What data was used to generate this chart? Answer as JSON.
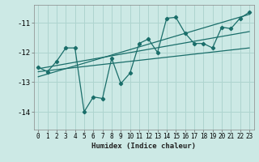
{
  "title": "",
  "xlabel": "Humidex (Indice chaleur)",
  "ylabel": "",
  "background_color": "#cce9e5",
  "grid_color": "#aed4cf",
  "line_color": "#1a6e6a",
  "xlim": [
    -0.5,
    23.5
  ],
  "ylim": [
    -14.6,
    -10.4
  ],
  "yticks": [
    -14,
    -13,
    -12,
    -11
  ],
  "xticks": [
    0,
    1,
    2,
    3,
    4,
    5,
    6,
    7,
    8,
    9,
    10,
    11,
    12,
    13,
    14,
    15,
    16,
    17,
    18,
    19,
    20,
    21,
    22,
    23
  ],
  "scatter_x": [
    0,
    1,
    2,
    3,
    4,
    5,
    6,
    7,
    8,
    9,
    10,
    11,
    12,
    13,
    14,
    15,
    16,
    17,
    18,
    19,
    20,
    21,
    22,
    23
  ],
  "scatter_y": [
    -12.5,
    -12.65,
    -12.3,
    -11.85,
    -11.85,
    -14.0,
    -13.5,
    -13.55,
    -12.2,
    -13.05,
    -12.7,
    -11.7,
    -11.55,
    -12.0,
    -10.85,
    -10.82,
    -11.35,
    -11.7,
    -11.7,
    -11.85,
    -11.15,
    -11.2,
    -10.85,
    -10.65
  ],
  "line1_x": [
    0,
    23
  ],
  "line1_y": [
    -12.65,
    -11.85
  ],
  "line2_x": [
    0,
    23
  ],
  "line2_y": [
    -12.55,
    -11.3
  ],
  "line3_x": [
    0,
    23
  ],
  "line3_y": [
    -12.82,
    -10.72
  ]
}
